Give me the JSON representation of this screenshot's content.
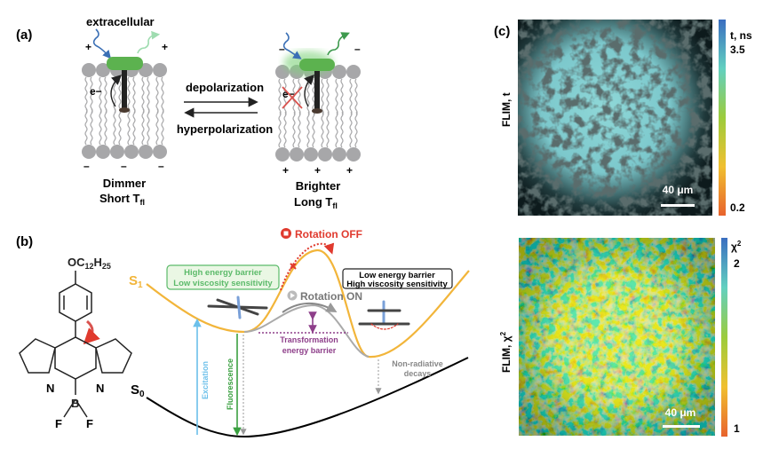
{
  "panel_a": {
    "label": "(a)",
    "extracellular": "extracellular",
    "depolarization": "depolarization",
    "hyperpolarization": "hyperpolarization",
    "electron": "e−",
    "left_state": {
      "line1": "Dimmer",
      "line2_main": "Short T",
      "line2_sub": "fl",
      "top_charge": "+",
      "bottom_charge": "–"
    },
    "right_state": {
      "line1": "Brighter",
      "line2_main": "Long T",
      "line2_sub": "fl",
      "top_charge": "–",
      "bottom_charge": "+"
    },
    "colors": {
      "membrane": "#a7a7a9",
      "probe": "#5cb24f",
      "excitation": "#3a6fb5",
      "emission": "#3e9a4e",
      "block": "#d9534f"
    }
  },
  "panel_b": {
    "label": "(b)",
    "substituent_main": "OC",
    "substituent_sub1": "12",
    "substituent_mid": "H",
    "substituent_sub2": "25",
    "atom_n1": "N",
    "atom_n2": "N",
    "atom_b": "B",
    "atom_f1": "F",
    "atom_f2": "F",
    "s1_main": "S",
    "s1_sub": "1",
    "s0_main": "S",
    "s0_sub": "0",
    "rotation_off": "Rotation OFF",
    "rotation_on": "Rotation ON",
    "green_box": [
      "High energy barrier",
      "Low viscosity sensitivity"
    ],
    "black_box": [
      "Low energy barrier",
      "High viscosity sensitivity"
    ],
    "barrier_label": [
      "Transformation",
      "energy barrier"
    ],
    "excitation": "Excitation",
    "fluorescence": "Fluorescence",
    "nonradiative": [
      "Non-radiative",
      "decays"
    ],
    "colors": {
      "s1": "#f2b53a",
      "s0": "#000000",
      "excitation": "#6cc0ea",
      "fluorescence": "#3aa040",
      "off": "#e03a2e",
      "barrier": "#8e3f8a",
      "green_text": "#5cba6a"
    }
  },
  "panel_c": {
    "label": "(c)",
    "top": {
      "ylabel": "FLIM, t",
      "colorbar_title": "t, ns",
      "max": "3.5",
      "min": "0.2",
      "scale": "40 μm"
    },
    "bottom": {
      "ylabel_main": "FLIM, χ",
      "ylabel_sup": "2",
      "colorbar_title_main": "χ",
      "colorbar_title_sup": "2",
      "max": "2",
      "min": "1",
      "scale": "40 μm"
    },
    "colormap": [
      "#e8632d",
      "#f0c030",
      "#9ccc3c",
      "#62d0c0",
      "#3a6ec0"
    ]
  }
}
